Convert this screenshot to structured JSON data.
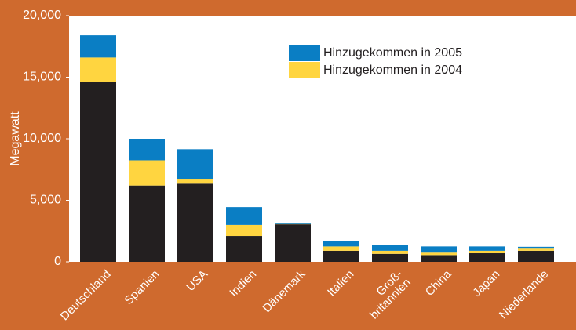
{
  "chart_data": {
    "type": "stacked_bar",
    "ylabel": "Megawatt",
    "categories": [
      "Deutschland",
      "Spanien",
      "USA",
      "Indien",
      "Dänemark",
      "Italien",
      "Groß-\nbritannien",
      "China",
      "Japan",
      "Niederlande"
    ],
    "series": [
      {
        "color": "#231f20",
        "values": [
          14600,
          6200,
          6350,
          2100,
          3050,
          900,
          650,
          550,
          700,
          900
        ]
      },
      {
        "name": "Hinzugekommen in 2004",
        "color": "#ffd540",
        "values": [
          2000,
          2050,
          400,
          900,
          20,
          350,
          250,
          200,
          200,
          170
        ]
      },
      {
        "name": "Hinzugekommen in 2005",
        "color": "#0a7ec4",
        "values": [
          1800,
          1750,
          2400,
          1450,
          50,
          450,
          450,
          500,
          350,
          150
        ]
      }
    ],
    "ylim": [
      0,
      20000
    ],
    "yticks": [
      0,
      {
        "value": 5000,
        "label": "5,000"
      },
      {
        "value": 10000,
        "label": "10,000"
      },
      {
        "value": 15000,
        "label": "15,000"
      },
      {
        "value": 20000,
        "label": "20,000"
      }
    ],
    "grid": false,
    "legend": "top-right"
  }
}
